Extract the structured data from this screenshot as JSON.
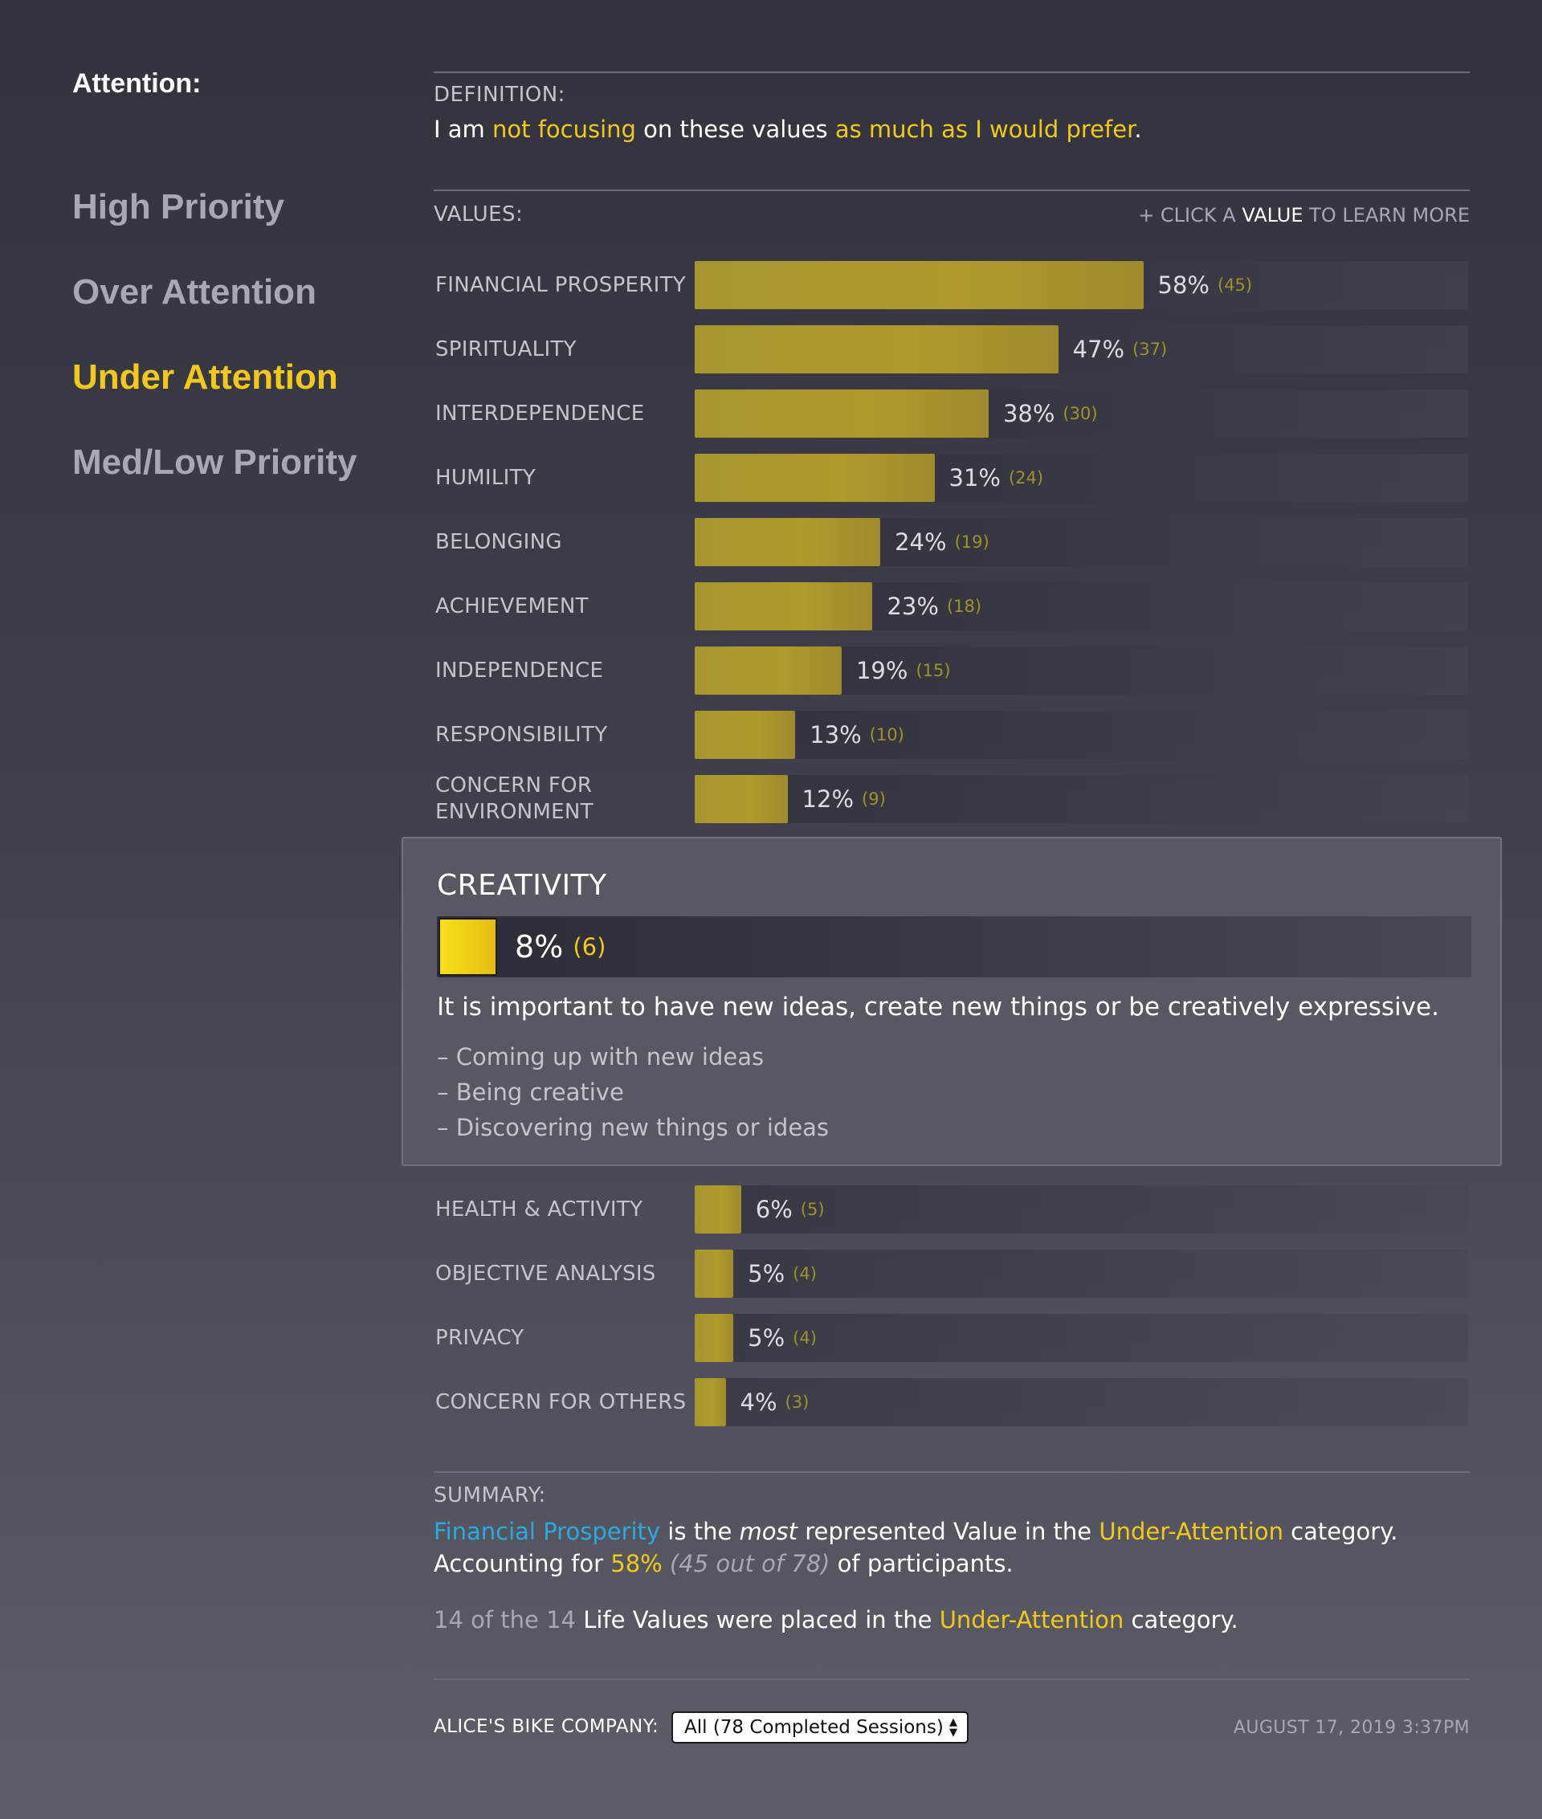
{
  "sidebar": {
    "heading": "Attention:",
    "items": [
      {
        "label": "High Priority",
        "active": false
      },
      {
        "label": "Over Attention",
        "active": false
      },
      {
        "label": "Under Attention",
        "active": true
      },
      {
        "label": "Med/Low Priority",
        "active": false
      }
    ]
  },
  "definition": {
    "label": "DEFINITION:",
    "t1": "I am ",
    "t2": "not focusing",
    "t3": " on these values ",
    "t4": "as much as I would prefer",
    "t5": "."
  },
  "values": {
    "label": "VALUES:",
    "hint_plus": "+ CLICK A ",
    "hint_strong": "VALUE",
    "hint_rest": " TO LEARN MORE"
  },
  "chart_data": {
    "type": "bar",
    "orientation": "horizontal",
    "xlim": [
      0,
      100
    ],
    "categories": [
      "FINANCIAL PROSPERITY",
      "SPIRITUALITY",
      "INTERDEPENDENCE",
      "HUMILITY",
      "BELONGING",
      "ACHIEVEMENT",
      "INDEPENDENCE",
      "RESPONSIBILITY",
      "CONCERN FOR ENVIRONMENT",
      "CREATIVITY",
      "HEALTH & ACTIVITY",
      "OBJECTIVE ANALYSIS",
      "PRIVACY",
      "CONCERN FOR OTHERS"
    ],
    "values": [
      58,
      47,
      38,
      31,
      24,
      23,
      19,
      13,
      12,
      8,
      6,
      5,
      5,
      4
    ],
    "counts": [
      45,
      37,
      30,
      24,
      19,
      18,
      15,
      10,
      9,
      6,
      5,
      4,
      4,
      3
    ],
    "pct_labels": [
      "58%",
      "47%",
      "38%",
      "31%",
      "24%",
      "23%",
      "19%",
      "13%",
      "12%",
      "8%",
      "6%",
      "5%",
      "5%",
      "4%"
    ],
    "count_labels": [
      "(45)",
      "(37)",
      "(30)",
      "(24)",
      "(19)",
      "(18)",
      "(15)",
      "(10)",
      "(9)",
      "(6)",
      "(5)",
      "(4)",
      "(4)",
      "(3)"
    ],
    "selected": "CREATIVITY",
    "bar_color": "#a69530",
    "selected_color": "#f2d418"
  },
  "detail": {
    "title": "CREATIVITY",
    "pct": "8%",
    "count": "(6)",
    "value": 8,
    "description": "It is important to have new ideas, create new things or be creatively expressive.",
    "bullets": [
      "– Coming up with new ideas",
      "– Being creative",
      "– Discovering new things or ideas"
    ]
  },
  "summary": {
    "label": "SUMMARY:",
    "l1a": "Financial Prosperity",
    "l1b": " is the ",
    "l1c": "most",
    "l1d": " represented Value in the ",
    "l1e": "Under-Attention",
    "l1f": " category.",
    "l2a": "Accounting for ",
    "l2b": "58%",
    "l2c": " (45 out of 78)",
    "l2d": " of participants.",
    "l3a": "14 of the 14",
    "l3b": " Life Values were placed in the ",
    "l3c": "Under-Attention",
    "l3d": " category."
  },
  "footer": {
    "company_label": "ALICE'S BIKE COMPANY:",
    "select_value": "All (78 Completed Sessions)",
    "date": "AUGUST 17, 2019 3:37PM"
  }
}
